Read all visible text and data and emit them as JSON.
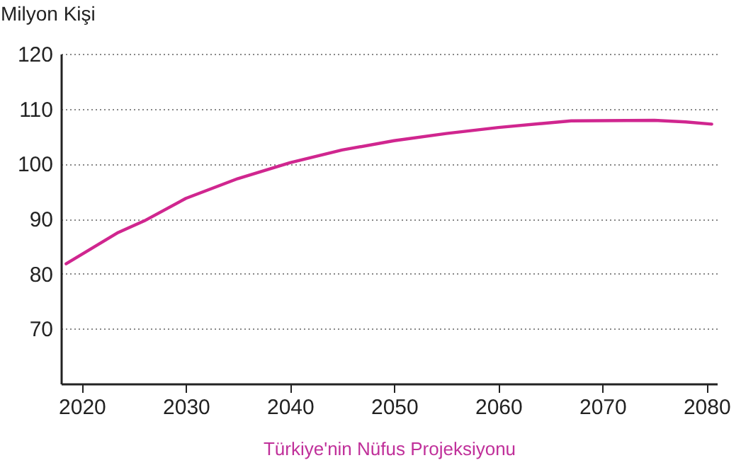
{
  "chart_data": {
    "type": "line",
    "xlabel": "Türkiye'nin Nüfus Projeksiyonu",
    "ylabel": "Milyon Kişi",
    "x": [
      2018.5,
      2020,
      2023.5,
      2026,
      2030,
      2035,
      2040,
      2045,
      2050,
      2055,
      2060,
      2067,
      2075,
      2078,
      2080.5
    ],
    "series": [
      {
        "color": "#d0268f",
        "values": [
          81.8,
          83.5,
          87.5,
          89.6,
          93.7,
          97.3,
          100.2,
          102.5,
          104.2,
          105.5,
          106.6,
          107.8,
          107.9,
          107.6,
          107.2
        ]
      }
    ],
    "xlim": [
      2018,
      2081
    ],
    "xticks": [
      2020,
      2030,
      2040,
      2050,
      2060,
      2070,
      2080
    ],
    "ylim": [
      60,
      120
    ],
    "yticks": [
      70,
      80,
      90,
      100,
      110,
      120
    ],
    "grid": "y",
    "line_style": "solid",
    "marker": "none"
  }
}
